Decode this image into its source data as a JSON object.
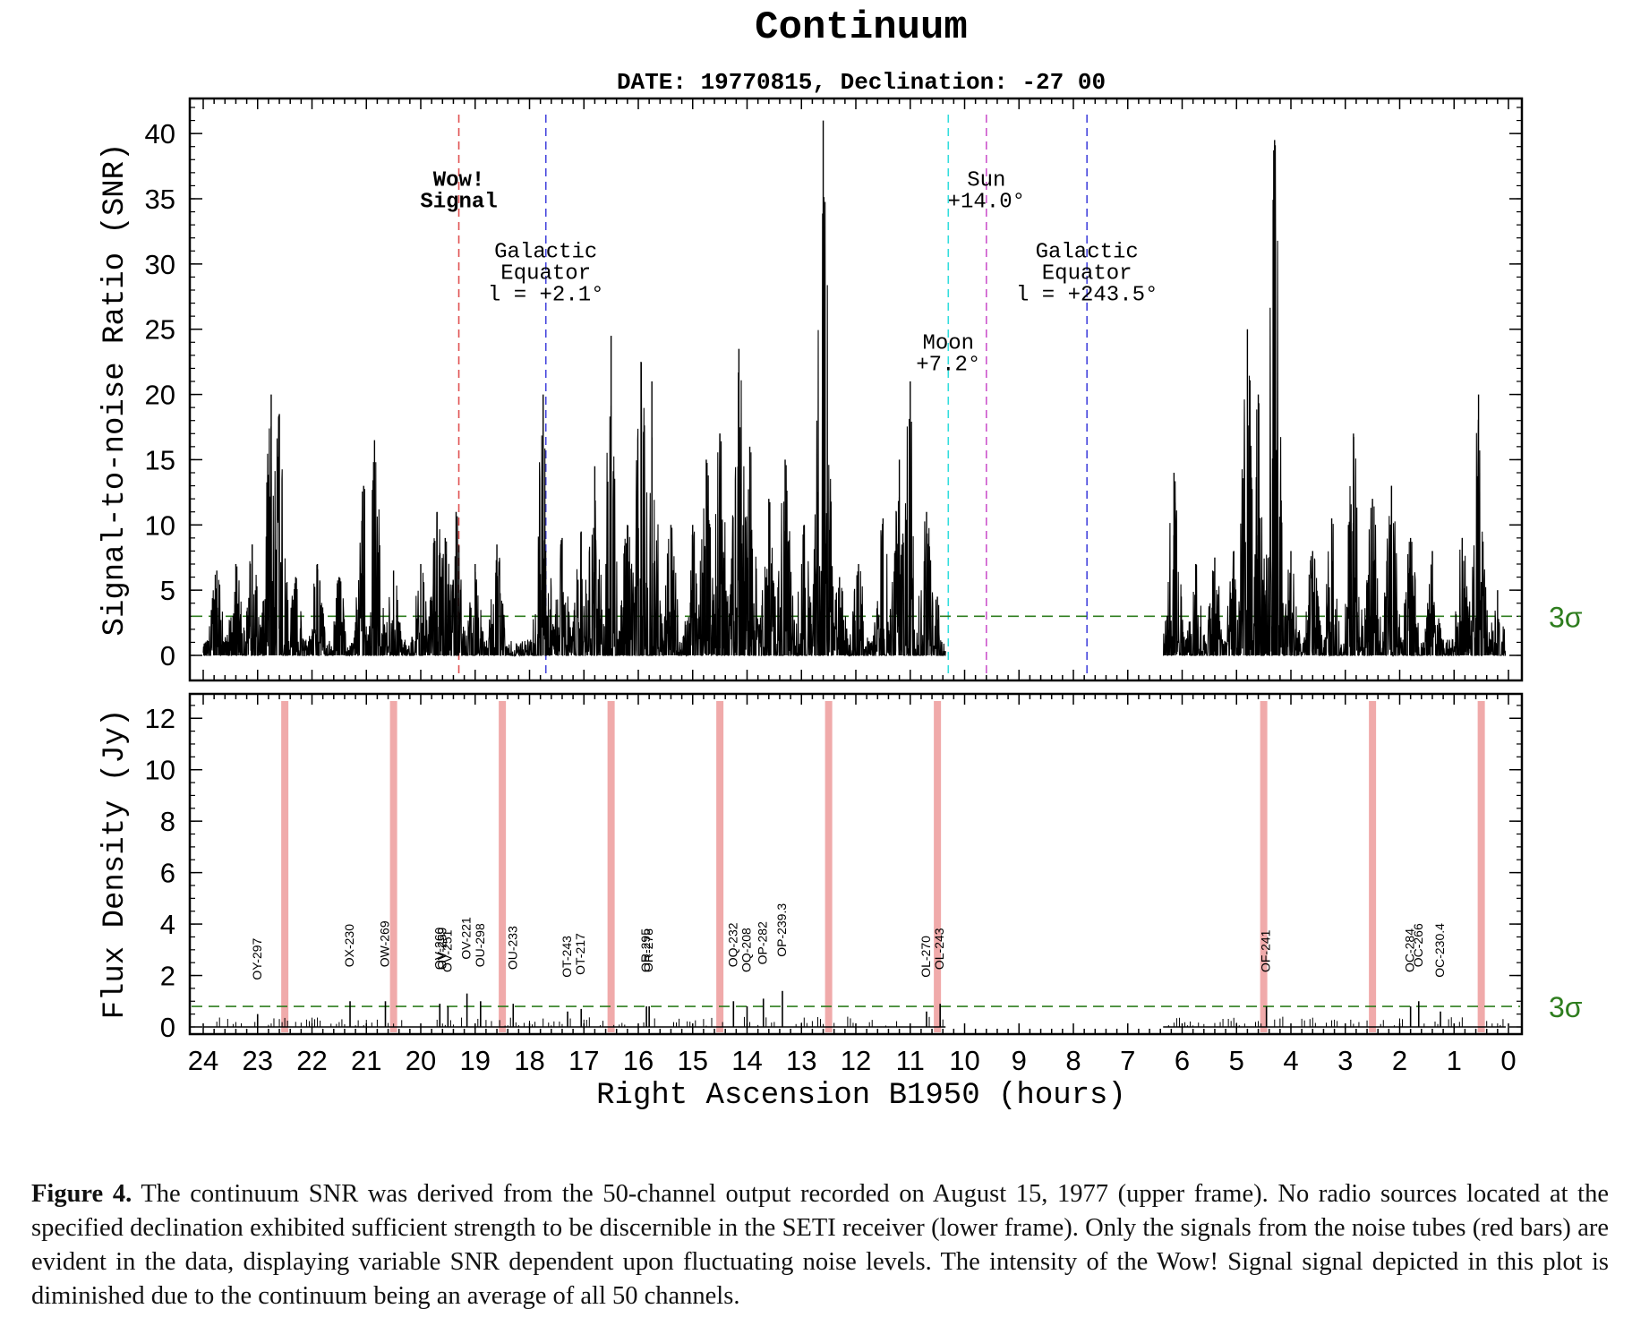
{
  "figure": {
    "title": "Continuum",
    "subtitle": "DATE: 19770815, Declination: -27 00",
    "caption": {
      "label": "Figure 4.",
      "text": "The continuum SNR was derived from the 50-channel output recorded on August 15, 1977 (upper frame). No radio sources located at the specified declination exhibited sufficient strength to be discernible in the SETI receiver (lower frame). Only the signals from the noise tubes (red bars) are evident in the data, displaying variable SNR dependent upon fluctuating noise levels. The intensity of the Wow! Signal signal depicted in this plot is diminished due to the continuum being an average of all 50 channels."
    }
  },
  "chart_data": [
    {
      "type": "line",
      "panel": "upper",
      "ylabel": "Signal-to-noise Ratio (SNR)",
      "xlabel": "Right Ascension B1950 (hours)",
      "xlim": [
        24,
        0
      ],
      "ylim": [
        0,
        42
      ],
      "yticks": [
        "0",
        "5",
        "10",
        "15",
        "20",
        "25",
        "30",
        "35",
        "40"
      ],
      "xticks": [
        "24",
        "23",
        "22",
        "21",
        "20",
        "19",
        "18",
        "17",
        "16",
        "15",
        "14",
        "13",
        "12",
        "11",
        "10",
        "9",
        "8",
        "7",
        "6",
        "5",
        "4",
        "3",
        "2",
        "1",
        "0"
      ],
      "threshold": {
        "value": 3,
        "label": "3σ",
        "color": "#2e7d1e"
      },
      "series_color": "#000000",
      "data_segments": [
        [
          24.0,
          10.35
        ],
        [
          6.35,
          0.05
        ]
      ],
      "peaks": [
        {
          "x": 23.75,
          "y": 6.5
        },
        {
          "x": 23.4,
          "y": 7.0
        },
        {
          "x": 23.1,
          "y": 8.5
        },
        {
          "x": 22.75,
          "y": 20.0
        },
        {
          "x": 22.6,
          "y": 18.5
        },
        {
          "x": 22.3,
          "y": 6.0
        },
        {
          "x": 21.9,
          "y": 7.0
        },
        {
          "x": 21.5,
          "y": 6.0
        },
        {
          "x": 21.05,
          "y": 13.0
        },
        {
          "x": 20.85,
          "y": 16.5
        },
        {
          "x": 20.5,
          "y": 6.5
        },
        {
          "x": 20.0,
          "y": 7.0
        },
        {
          "x": 19.7,
          "y": 11.0
        },
        {
          "x": 19.55,
          "y": 9.0
        },
        {
          "x": 19.35,
          "y": 11.0
        },
        {
          "x": 19.0,
          "y": 7.0
        },
        {
          "x": 18.6,
          "y": 8.5
        },
        {
          "x": 17.8,
          "y": 5.0
        },
        {
          "x": 17.75,
          "y": 20.0
        },
        {
          "x": 17.4,
          "y": 9.0
        },
        {
          "x": 17.05,
          "y": 9.5
        },
        {
          "x": 16.8,
          "y": 14.5
        },
        {
          "x": 16.5,
          "y": 24.5
        },
        {
          "x": 16.2,
          "y": 10.0
        },
        {
          "x": 15.95,
          "y": 22.5
        },
        {
          "x": 15.75,
          "y": 21.0
        },
        {
          "x": 15.4,
          "y": 10.0
        },
        {
          "x": 15.0,
          "y": 10.0
        },
        {
          "x": 14.75,
          "y": 15.0
        },
        {
          "x": 14.5,
          "y": 17.0
        },
        {
          "x": 14.15,
          "y": 23.5
        },
        {
          "x": 13.95,
          "y": 16.0
        },
        {
          "x": 13.6,
          "y": 12.0
        },
        {
          "x": 13.3,
          "y": 15.0
        },
        {
          "x": 12.95,
          "y": 10.0
        },
        {
          "x": 12.6,
          "y": 41.0
        },
        {
          "x": 12.3,
          "y": 6.0
        },
        {
          "x": 11.95,
          "y": 7.0
        },
        {
          "x": 11.5,
          "y": 10.5
        },
        {
          "x": 11.2,
          "y": 15.0
        },
        {
          "x": 11.0,
          "y": 21.0
        },
        {
          "x": 10.7,
          "y": 11.0
        },
        {
          "x": 10.5,
          "y": 4.5
        },
        {
          "x": 6.15,
          "y": 14.0
        },
        {
          "x": 5.75,
          "y": 7.0
        },
        {
          "x": 5.4,
          "y": 7.5
        },
        {
          "x": 5.05,
          "y": 8.0
        },
        {
          "x": 4.8,
          "y": 25.0
        },
        {
          "x": 4.6,
          "y": 20.0
        },
        {
          "x": 4.3,
          "y": 39.5
        },
        {
          "x": 4.0,
          "y": 8.0
        },
        {
          "x": 3.6,
          "y": 8.0
        },
        {
          "x": 3.25,
          "y": 10.5
        },
        {
          "x": 2.85,
          "y": 17.0
        },
        {
          "x": 2.5,
          "y": 12.0
        },
        {
          "x": 2.15,
          "y": 13.0
        },
        {
          "x": 1.8,
          "y": 9.0
        },
        {
          "x": 1.4,
          "y": 8.0
        },
        {
          "x": 0.85,
          "y": 9.0
        },
        {
          "x": 0.55,
          "y": 20.0
        },
        {
          "x": 0.2,
          "y": 5.0
        }
      ],
      "markers": [
        {
          "x": 19.3,
          "color": "#e05050",
          "label": [
            "Wow!",
            "Signal"
          ],
          "bold": true,
          "label_y": 36.0
        },
        {
          "x": 17.7,
          "color": "#4545dd",
          "label": [
            "Galactic",
            "Equator",
            "l = +2.1°"
          ],
          "bold": false,
          "label_y": 30.5
        },
        {
          "x": 10.3,
          "color": "#33dddd",
          "label": [
            "Moon",
            "+7.2°"
          ],
          "bold": false,
          "label_y": 23.5
        },
        {
          "x": 9.6,
          "color": "#cc55cc",
          "label": [
            "Sun",
            "+14.0°"
          ],
          "bold": false,
          "label_y": 36.0
        },
        {
          "x": 7.75,
          "color": "#4545dd",
          "label": [
            "Galactic",
            "Equator",
            "l = +243.5°"
          ],
          "bold": false,
          "label_y": 30.5
        }
      ]
    },
    {
      "type": "bar",
      "panel": "lower",
      "ylabel": "Flux Density (Jy)",
      "xlabel": "Right Ascension B1950 (hours)",
      "xlim": [
        24,
        0
      ],
      "ylim": [
        0,
        12.6
      ],
      "yticks": [
        "0",
        "2",
        "4",
        "6",
        "8",
        "10",
        "12"
      ],
      "threshold": {
        "value": 0.8,
        "label": "3σ",
        "color": "#2e7d1e"
      },
      "noise_tube_color": "#f0aaaa",
      "noise_tubes": [
        22.5,
        20.5,
        18.5,
        16.5,
        14.5,
        12.5,
        10.5,
        4.5,
        2.5,
        0.5
      ],
      "data_segments": [
        [
          24.0,
          10.35
        ],
        [
          6.35,
          0.05
        ]
      ],
      "sources": [
        {
          "name": "OY-297",
          "x": 23.0,
          "flux": 0.5
        },
        {
          "name": "OX-230",
          "x": 21.3,
          "flux": 1.0
        },
        {
          "name": "OW-269",
          "x": 20.65,
          "flux": 1.0
        },
        {
          "name": "OV-260",
          "x": 19.65,
          "flux": 0.9
        },
        {
          "name": "OV-259",
          "x": 19.65,
          "flux": 0.9
        },
        {
          "name": "OV-251",
          "x": 19.5,
          "flux": 0.8
        },
        {
          "name": "OV-221",
          "x": 19.15,
          "flux": 1.3
        },
        {
          "name": "OU-298",
          "x": 18.9,
          "flux": 1.0
        },
        {
          "name": "OU-233",
          "x": 18.3,
          "flux": 0.9
        },
        {
          "name": "OT-243",
          "x": 17.3,
          "flux": 0.6
        },
        {
          "name": "OT-217",
          "x": 17.05,
          "flux": 0.7
        },
        {
          "name": "OR-295",
          "x": 15.85,
          "flux": 0.8
        },
        {
          "name": "OR-278",
          "x": 15.8,
          "flux": 0.8
        },
        {
          "name": "OQ-232",
          "x": 14.25,
          "flux": 1.0
        },
        {
          "name": "OQ-208",
          "x": 14.0,
          "flux": 0.8
        },
        {
          "name": "OP-282",
          "x": 13.7,
          "flux": 1.1
        },
        {
          "name": "OP-239.3",
          "x": 13.35,
          "flux": 1.4
        },
        {
          "name": "OL-270",
          "x": 10.7,
          "flux": 0.6
        },
        {
          "name": "OL-243",
          "x": 10.45,
          "flux": 0.9
        },
        {
          "name": "OF-241",
          "x": 4.45,
          "flux": 0.8
        },
        {
          "name": "OC-284",
          "x": 1.8,
          "flux": 0.8
        },
        {
          "name": "OC-266",
          "x": 1.65,
          "flux": 1.0
        },
        {
          "name": "OC-230.4",
          "x": 1.25,
          "flux": 0.6
        }
      ]
    }
  ]
}
